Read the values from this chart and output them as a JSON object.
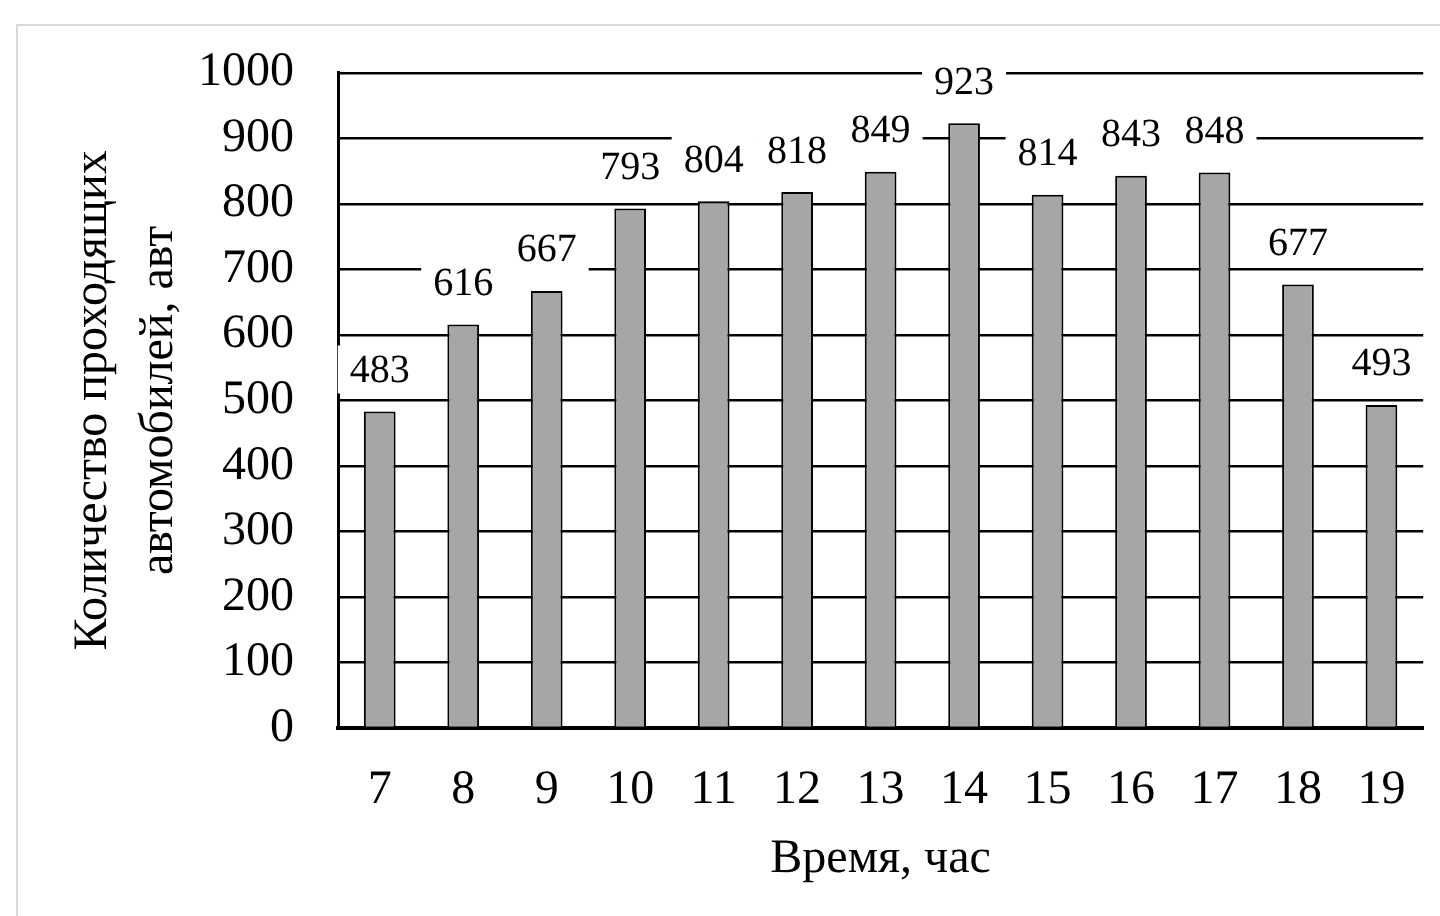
{
  "chart_data": {
    "type": "bar",
    "xlabel": "Время, час",
    "ylabel": "Количество проходящих автомобилей, авт",
    "categories": [
      "7",
      "8",
      "9",
      "10",
      "11",
      "12",
      "13",
      "14",
      "15",
      "16",
      "17",
      "18",
      "19"
    ],
    "values": [
      483,
      616,
      667,
      793,
      804,
      818,
      849,
      923,
      814,
      843,
      848,
      677,
      493
    ],
    "color": "#a6a6a6",
    "ylim": [
      0,
      1000
    ],
    "yticks": [
      0,
      100,
      200,
      300,
      400,
      500,
      600,
      700,
      800,
      900,
      1000
    ],
    "grid": "y",
    "data_labels": true
  }
}
